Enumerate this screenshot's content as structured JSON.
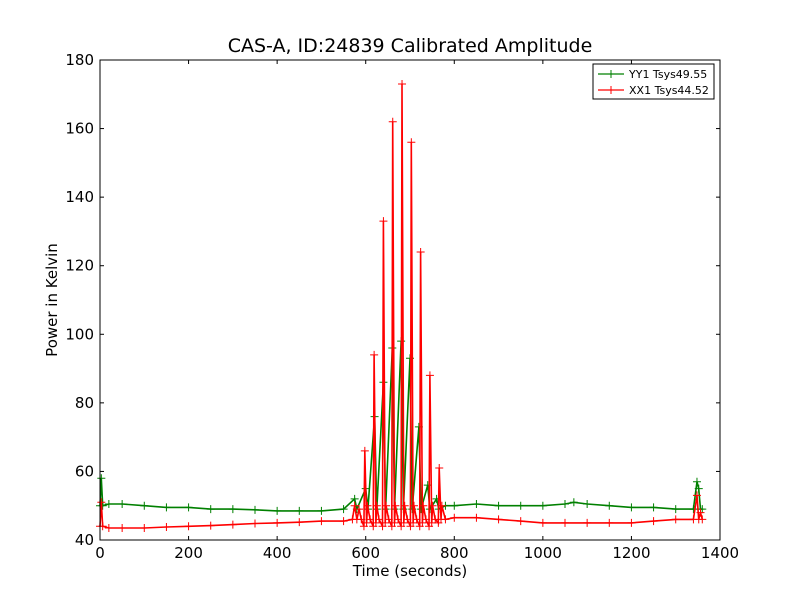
{
  "chart_data": {
    "type": "line",
    "title": "CAS-A, ID:24839 Calibrated Amplitude",
    "xlabel": "Time (seconds)",
    "ylabel": "Power in Kelvin",
    "xlim": [
      0,
      1400
    ],
    "ylim": [
      40,
      180
    ],
    "xticks": [
      0,
      200,
      400,
      600,
      800,
      1000,
      1200,
      1400
    ],
    "yticks": [
      40,
      60,
      80,
      100,
      120,
      140,
      160,
      180
    ],
    "grid": false,
    "legend_position": "upper-right",
    "marker": "+",
    "series": [
      {
        "name": "YY1 Tsys49.55",
        "color": "#008000",
        "x": [
          0,
          3,
          6,
          20,
          50,
          100,
          150,
          200,
          250,
          300,
          350,
          400,
          450,
          500,
          550,
          575,
          580,
          600,
          605,
          620,
          625,
          640,
          645,
          660,
          665,
          680,
          685,
          700,
          705,
          720,
          725,
          740,
          745,
          760,
          765,
          780,
          800,
          850,
          900,
          950,
          1000,
          1050,
          1070,
          1100,
          1150,
          1200,
          1250,
          1300,
          1340,
          1348,
          1352,
          1356,
          1360
        ],
        "y": [
          50,
          58,
          50,
          50.5,
          50.5,
          50,
          49.5,
          49.5,
          49,
          49,
          48.8,
          48.5,
          48.5,
          48.5,
          49,
          52,
          49,
          55,
          49,
          76,
          49,
          86,
          49,
          96,
          49,
          98,
          49,
          93,
          49,
          73,
          49,
          56,
          49,
          52,
          49,
          50,
          50,
          50.5,
          50,
          50,
          50,
          50.5,
          51,
          50.5,
          50,
          49.5,
          49.5,
          49,
          49,
          57,
          55,
          49,
          49
        ]
      },
      {
        "name": "XX1 Tsys44.52",
        "color": "#ff0000",
        "x": [
          0,
          3,
          6,
          20,
          50,
          100,
          150,
          200,
          250,
          300,
          350,
          400,
          450,
          500,
          550,
          570,
          575,
          580,
          585,
          590,
          596,
          598,
          602,
          604,
          610,
          617,
          619,
          623,
          625,
          630,
          638,
          640,
          644,
          646,
          652,
          659,
          661,
          665,
          667,
          673,
          680,
          682,
          686,
          688,
          694,
          701,
          703,
          707,
          709,
          715,
          722,
          724,
          728,
          730,
          736,
          743,
          745,
          749,
          751,
          757,
          764,
          766,
          770,
          772,
          780,
          800,
          850,
          900,
          950,
          1000,
          1050,
          1100,
          1150,
          1200,
          1250,
          1300,
          1340,
          1348,
          1352,
          1356,
          1360
        ],
        "y": [
          44,
          51,
          44,
          43.5,
          43.5,
          43.5,
          43.8,
          44,
          44.2,
          44.5,
          44.8,
          45,
          45.2,
          45.5,
          45.5,
          46,
          50,
          46,
          49,
          46,
          44,
          66,
          45,
          50,
          46,
          44,
          94,
          45,
          50,
          46,
          44,
          133,
          45,
          50,
          46,
          44,
          162,
          45,
          50,
          46,
          44,
          173,
          45,
          50,
          46,
          44,
          156,
          45,
          50,
          46,
          44,
          124,
          45,
          50,
          46,
          44,
          88,
          45,
          50,
          46,
          45,
          61,
          46,
          50,
          46,
          46.5,
          46.5,
          46,
          45.5,
          45,
          45,
          45,
          45,
          45,
          45.5,
          46,
          46,
          53,
          46,
          48,
          46
        ]
      }
    ]
  }
}
